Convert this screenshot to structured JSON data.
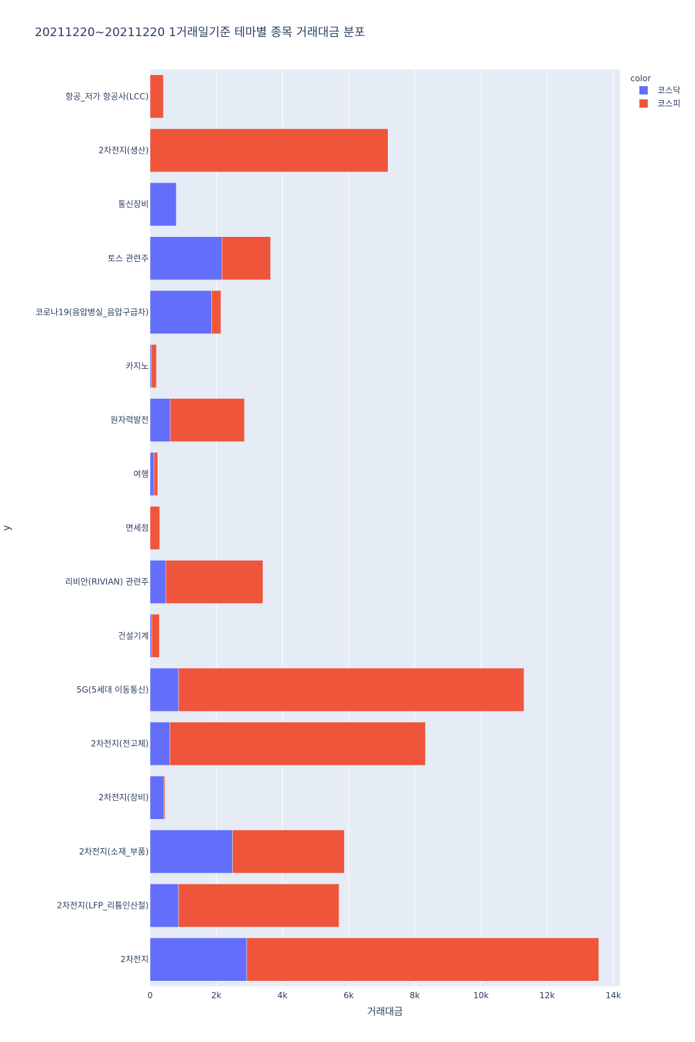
{
  "chart_data": {
    "type": "bar",
    "orientation": "horizontal",
    "barmode": "stack",
    "title": "20211220~20211220 1거래일기준 테마별 종목 거래대금 분포",
    "xlabel": "거래대금",
    "ylabel": "y",
    "xlim": [
      0,
      14200
    ],
    "xticks": [
      0,
      2000,
      4000,
      6000,
      8000,
      10000,
      12000,
      14000
    ],
    "xtick_labels": [
      "0",
      "2k",
      "4k",
      "6k",
      "8k",
      "10k",
      "12k",
      "14k"
    ],
    "grid": true,
    "legend": {
      "title": "color",
      "position": "top-right"
    },
    "categories": [
      "항공_저가 항공사(LCC)",
      "2차전지(생산)",
      "통신장비",
      "토스 관련주",
      "코로나19(음압병실_음압구급차)",
      "카지노",
      "원자력발전",
      "여행",
      "면세점",
      "리비안(RIVIAN) 관련주",
      "건설기계",
      "5G(5세대 이동통신)",
      "2차전지(전고체)",
      "2차전지(장비)",
      "2차전지(소재_부품)",
      "2차전지(LFP_리튬인산철)",
      "2차전지"
    ],
    "series": [
      {
        "name": "코스닥",
        "color": "#636efa",
        "values": [
          0,
          0,
          790,
          2170,
          1860,
          40,
          610,
          120,
          0,
          480,
          50,
          860,
          600,
          420,
          2490,
          860,
          2920
        ]
      },
      {
        "name": "코스피",
        "color": "#ef553b",
        "values": [
          400,
          7190,
          0,
          1470,
          280,
          150,
          2240,
          110,
          290,
          2930,
          230,
          10440,
          7720,
          30,
          3380,
          4850,
          10640
        ]
      }
    ]
  }
}
